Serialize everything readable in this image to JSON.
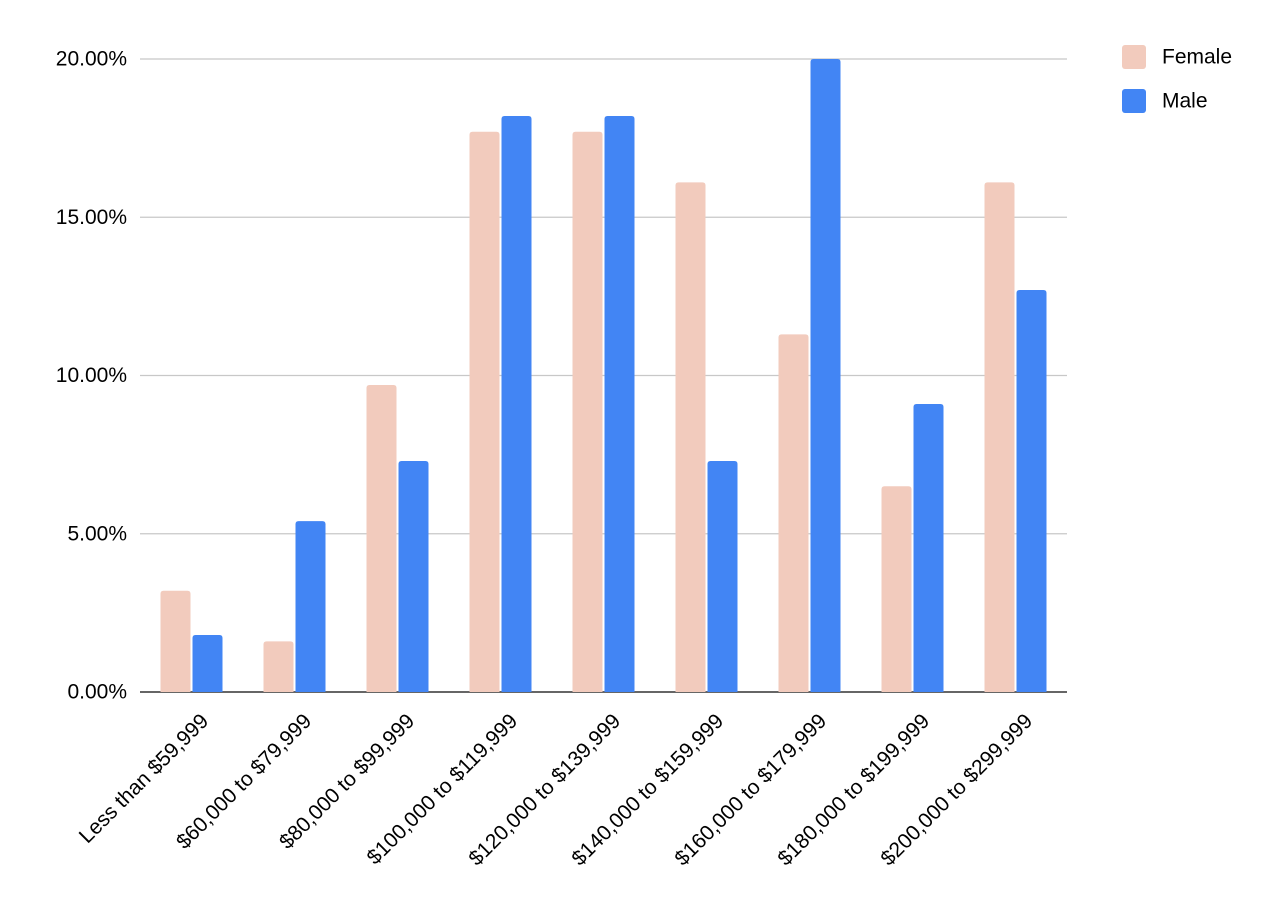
{
  "chart_data": {
    "type": "bar",
    "title": "",
    "xlabel": "",
    "ylabel": "",
    "categories": [
      "Less than $59,999",
      "$60,000 to $79,999",
      "$80,000 to $99,999",
      "$100,000 to $119,999",
      "$120,000 to $139,999",
      "$140,000 to $159,999",
      "$160,000 to $179,999",
      "$180,000 to $199,999",
      "$200,000 to $299,999"
    ],
    "series": [
      {
        "name": "Female",
        "color": "#f2cbbd",
        "values": [
          3.2,
          1.6,
          9.7,
          17.7,
          17.7,
          16.1,
          11.3,
          6.5,
          16.1
        ]
      },
      {
        "name": "Male",
        "color": "#4285f4",
        "values": [
          1.8,
          5.4,
          7.3,
          18.2,
          18.2,
          7.3,
          20.0,
          9.1,
          12.7
        ]
      }
    ],
    "ylim": [
      0,
      20
    ],
    "yticks": [
      "0.00%",
      "5.00%",
      "10.00%",
      "15.00%",
      "20.00%"
    ],
    "ytick_values": [
      0,
      5,
      10,
      15,
      20
    ],
    "grid": true,
    "legend_position": "top-right"
  }
}
